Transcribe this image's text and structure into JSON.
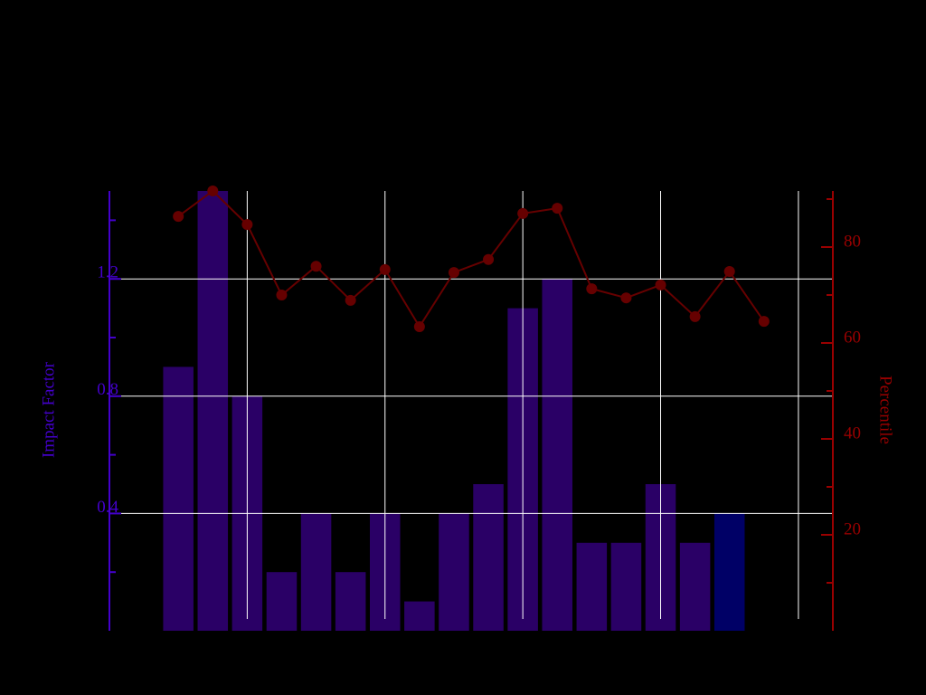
{
  "chart_data": {
    "type": "bar-line",
    "x": [
      0,
      1,
      2,
      3,
      4,
      5,
      6,
      7,
      8,
      9,
      10,
      11,
      12,
      13,
      14,
      15,
      16,
      17
    ],
    "xlim": [
      -2,
      19
    ],
    "xgrid": [
      2,
      6,
      10,
      14,
      18
    ],
    "ylabel": "Impact Factor",
    "y2label": "Percentile",
    "ylim": [
      0,
      1.5
    ],
    "yticks": [
      0.4,
      0.8,
      1.2
    ],
    "yminorticks": [
      0.2,
      0.6,
      1.0,
      1.4
    ],
    "y2lim": [
      0,
      91.7
    ],
    "y2ticks": [
      20,
      40,
      60,
      80
    ],
    "y2minorticks": [
      10,
      30,
      50,
      70,
      90
    ],
    "grid": true,
    "series": [
      {
        "type": "bar",
        "color": "#2a0066",
        "colors": [
          "#2a0066",
          "#2a0066",
          "#2a0066",
          "#2a0066",
          "#2a0066",
          "#2a0066",
          "#2a0066",
          "#2a0066",
          "#2a0066",
          "#2a0066",
          "#2a0066",
          "#2a0066",
          "#2a0066",
          "#2a0066",
          "#2a0066",
          "#2a0066",
          "#000066",
          "#2a0066"
        ],
        "values": [
          0.9,
          1.5,
          0.8,
          0.2,
          0.4,
          0.2,
          0.4,
          0.1,
          0.4,
          0.5,
          1.1,
          1.2,
          0.3,
          0.3,
          0.5,
          0.3,
          0.4,
          null
        ]
      },
      {
        "type": "line",
        "axis": "y2",
        "color": "#660000",
        "values": [
          86.4,
          91.7,
          84.7,
          70.0,
          76.0,
          68.9,
          75.3,
          63.4,
          74.7,
          77.4,
          87.0,
          88.1,
          71.3,
          69.4,
          72.1,
          65.5,
          74.9,
          64.5
        ]
      }
    ]
  }
}
